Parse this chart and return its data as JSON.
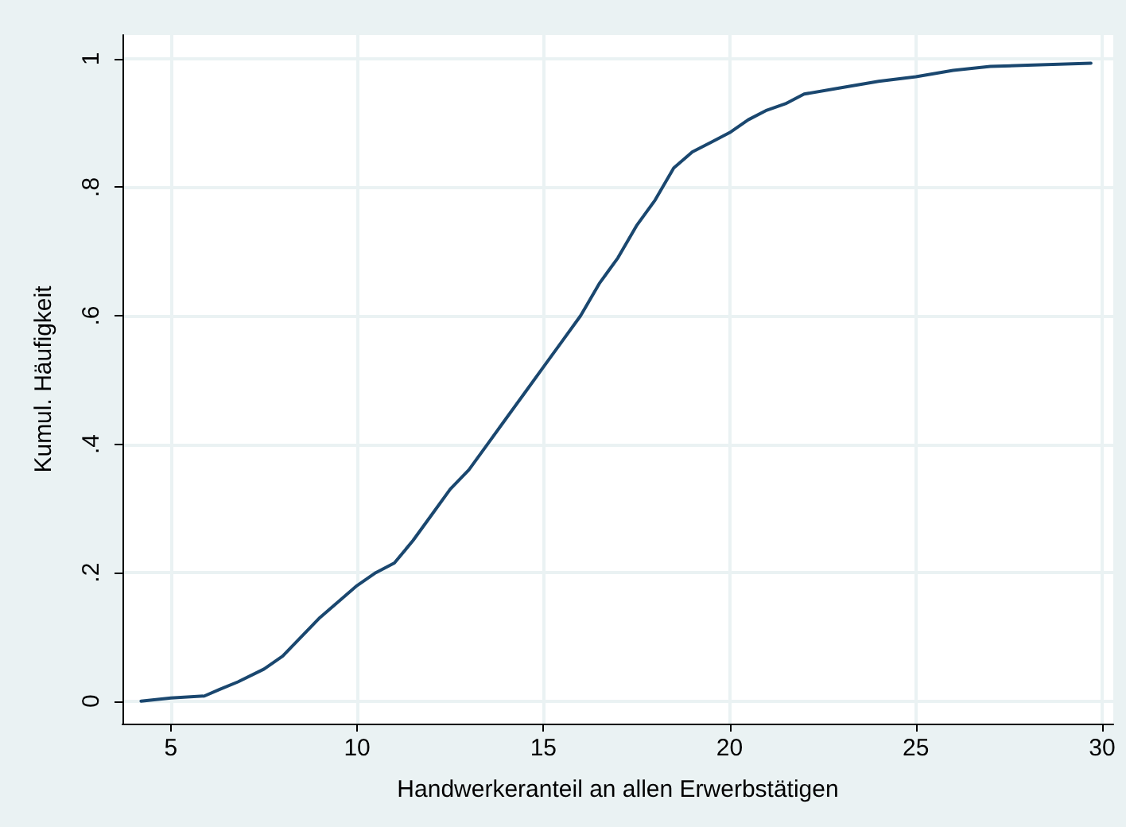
{
  "chart_data": {
    "type": "line",
    "xlabel": "Handwerkeranteil an allen Erwerbstätigen",
    "ylabel": "Kumul. Häufigkeit",
    "xlim": [
      3.7,
      30.3
    ],
    "xticks": [
      5,
      10,
      15,
      20,
      25,
      30
    ],
    "ylim": [
      -0.035,
      1.037
    ],
    "yticks": [
      {
        "value": 0,
        "label": "0"
      },
      {
        "value": 0.2,
        "label": ".2"
      },
      {
        "value": 0.4,
        "label": ".4"
      },
      {
        "value": 0.6,
        "label": ".6"
      },
      {
        "value": 0.8,
        "label": ".8"
      },
      {
        "value": 1,
        "label": "1"
      }
    ],
    "grid": true,
    "marker": "none",
    "line_style": "solid",
    "series": [
      {
        "color": "#1a476f",
        "x": [
          4.2,
          5,
          5.9,
          6.3,
          6.8,
          7.5,
          8,
          8.5,
          9,
          9.5,
          10,
          10.5,
          11,
          11.5,
          12,
          12.5,
          13,
          13.5,
          14,
          14.5,
          15,
          15.5,
          16,
          16.5,
          17,
          17.5,
          18,
          18.5,
          19,
          19.5,
          20,
          20.5,
          21,
          21.5,
          22,
          23,
          24,
          25,
          26,
          27,
          28,
          29.7
        ],
        "values": [
          0.0,
          0.005,
          0.008,
          0.018,
          0.03,
          0.05,
          0.07,
          0.1,
          0.13,
          0.155,
          0.18,
          0.2,
          0.215,
          0.25,
          0.29,
          0.33,
          0.36,
          0.4,
          0.44,
          0.48,
          0.52,
          0.56,
          0.6,
          0.65,
          0.69,
          0.74,
          0.78,
          0.83,
          0.855,
          0.87,
          0.885,
          0.905,
          0.92,
          0.93,
          0.945,
          0.955,
          0.965,
          0.972,
          0.982,
          0.988,
          0.99,
          0.993
        ]
      }
    ]
  }
}
